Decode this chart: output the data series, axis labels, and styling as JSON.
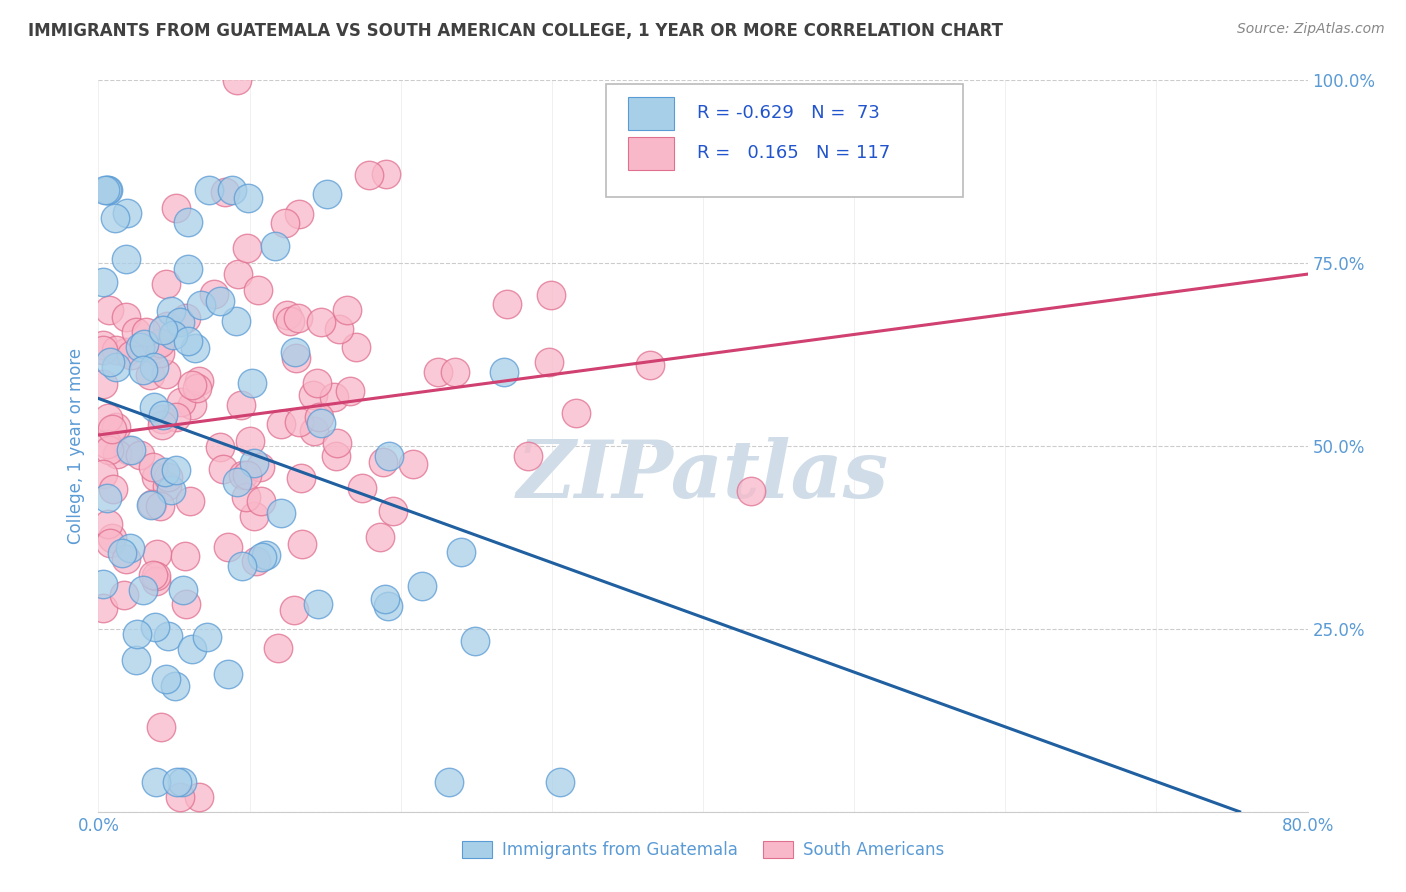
{
  "title": "IMMIGRANTS FROM GUATEMALA VS SOUTH AMERICAN COLLEGE, 1 YEAR OR MORE CORRELATION CHART",
  "source_text": "Source: ZipAtlas.com",
  "ylabel": "College, 1 year or more",
  "xlim": [
    0.0,
    0.8
  ],
  "ylim": [
    0.0,
    1.0
  ],
  "xtick_positions": [
    0.0,
    0.1,
    0.2,
    0.3,
    0.4,
    0.5,
    0.6,
    0.7,
    0.8
  ],
  "xticklabels": [
    "0.0%",
    "",
    "",
    "",
    "",
    "",
    "",
    "",
    "80.0%"
  ],
  "ytick_positions": [
    0.0,
    0.25,
    0.5,
    0.75,
    1.0
  ],
  "yticklabels": [
    "",
    "25.0%",
    "50.0%",
    "75.0%",
    "100.0%"
  ],
  "legend1_R": "-0.629",
  "legend1_N": "73",
  "legend2_R": "0.165",
  "legend2_N": "117",
  "blue_color": "#a8cfe8",
  "pink_color": "#f9b8ca",
  "blue_edge_color": "#5b9bd5",
  "pink_edge_color": "#e07090",
  "blue_line_color": "#2060a0",
  "pink_line_color": "#d04070",
  "watermark": "ZIPatlas",
  "watermark_color": "#d0dde8",
  "title_color": "#404040",
  "axis_label_color": "#5b9bd5",
  "tick_color": "#5b9bd5",
  "grid_color": "#cccccc",
  "background_color": "#ffffff",
  "legend_label1": "Immigrants from Guatemala",
  "legend_label2": "South Americans",
  "blue_trend_x0": 0.0,
  "blue_trend_y0": 0.565,
  "blue_trend_x1": 0.755,
  "blue_trend_y1": 0.0,
  "pink_trend_x0": 0.0,
  "pink_trend_y0": 0.515,
  "pink_trend_x1": 0.8,
  "pink_trend_y1": 0.735
}
